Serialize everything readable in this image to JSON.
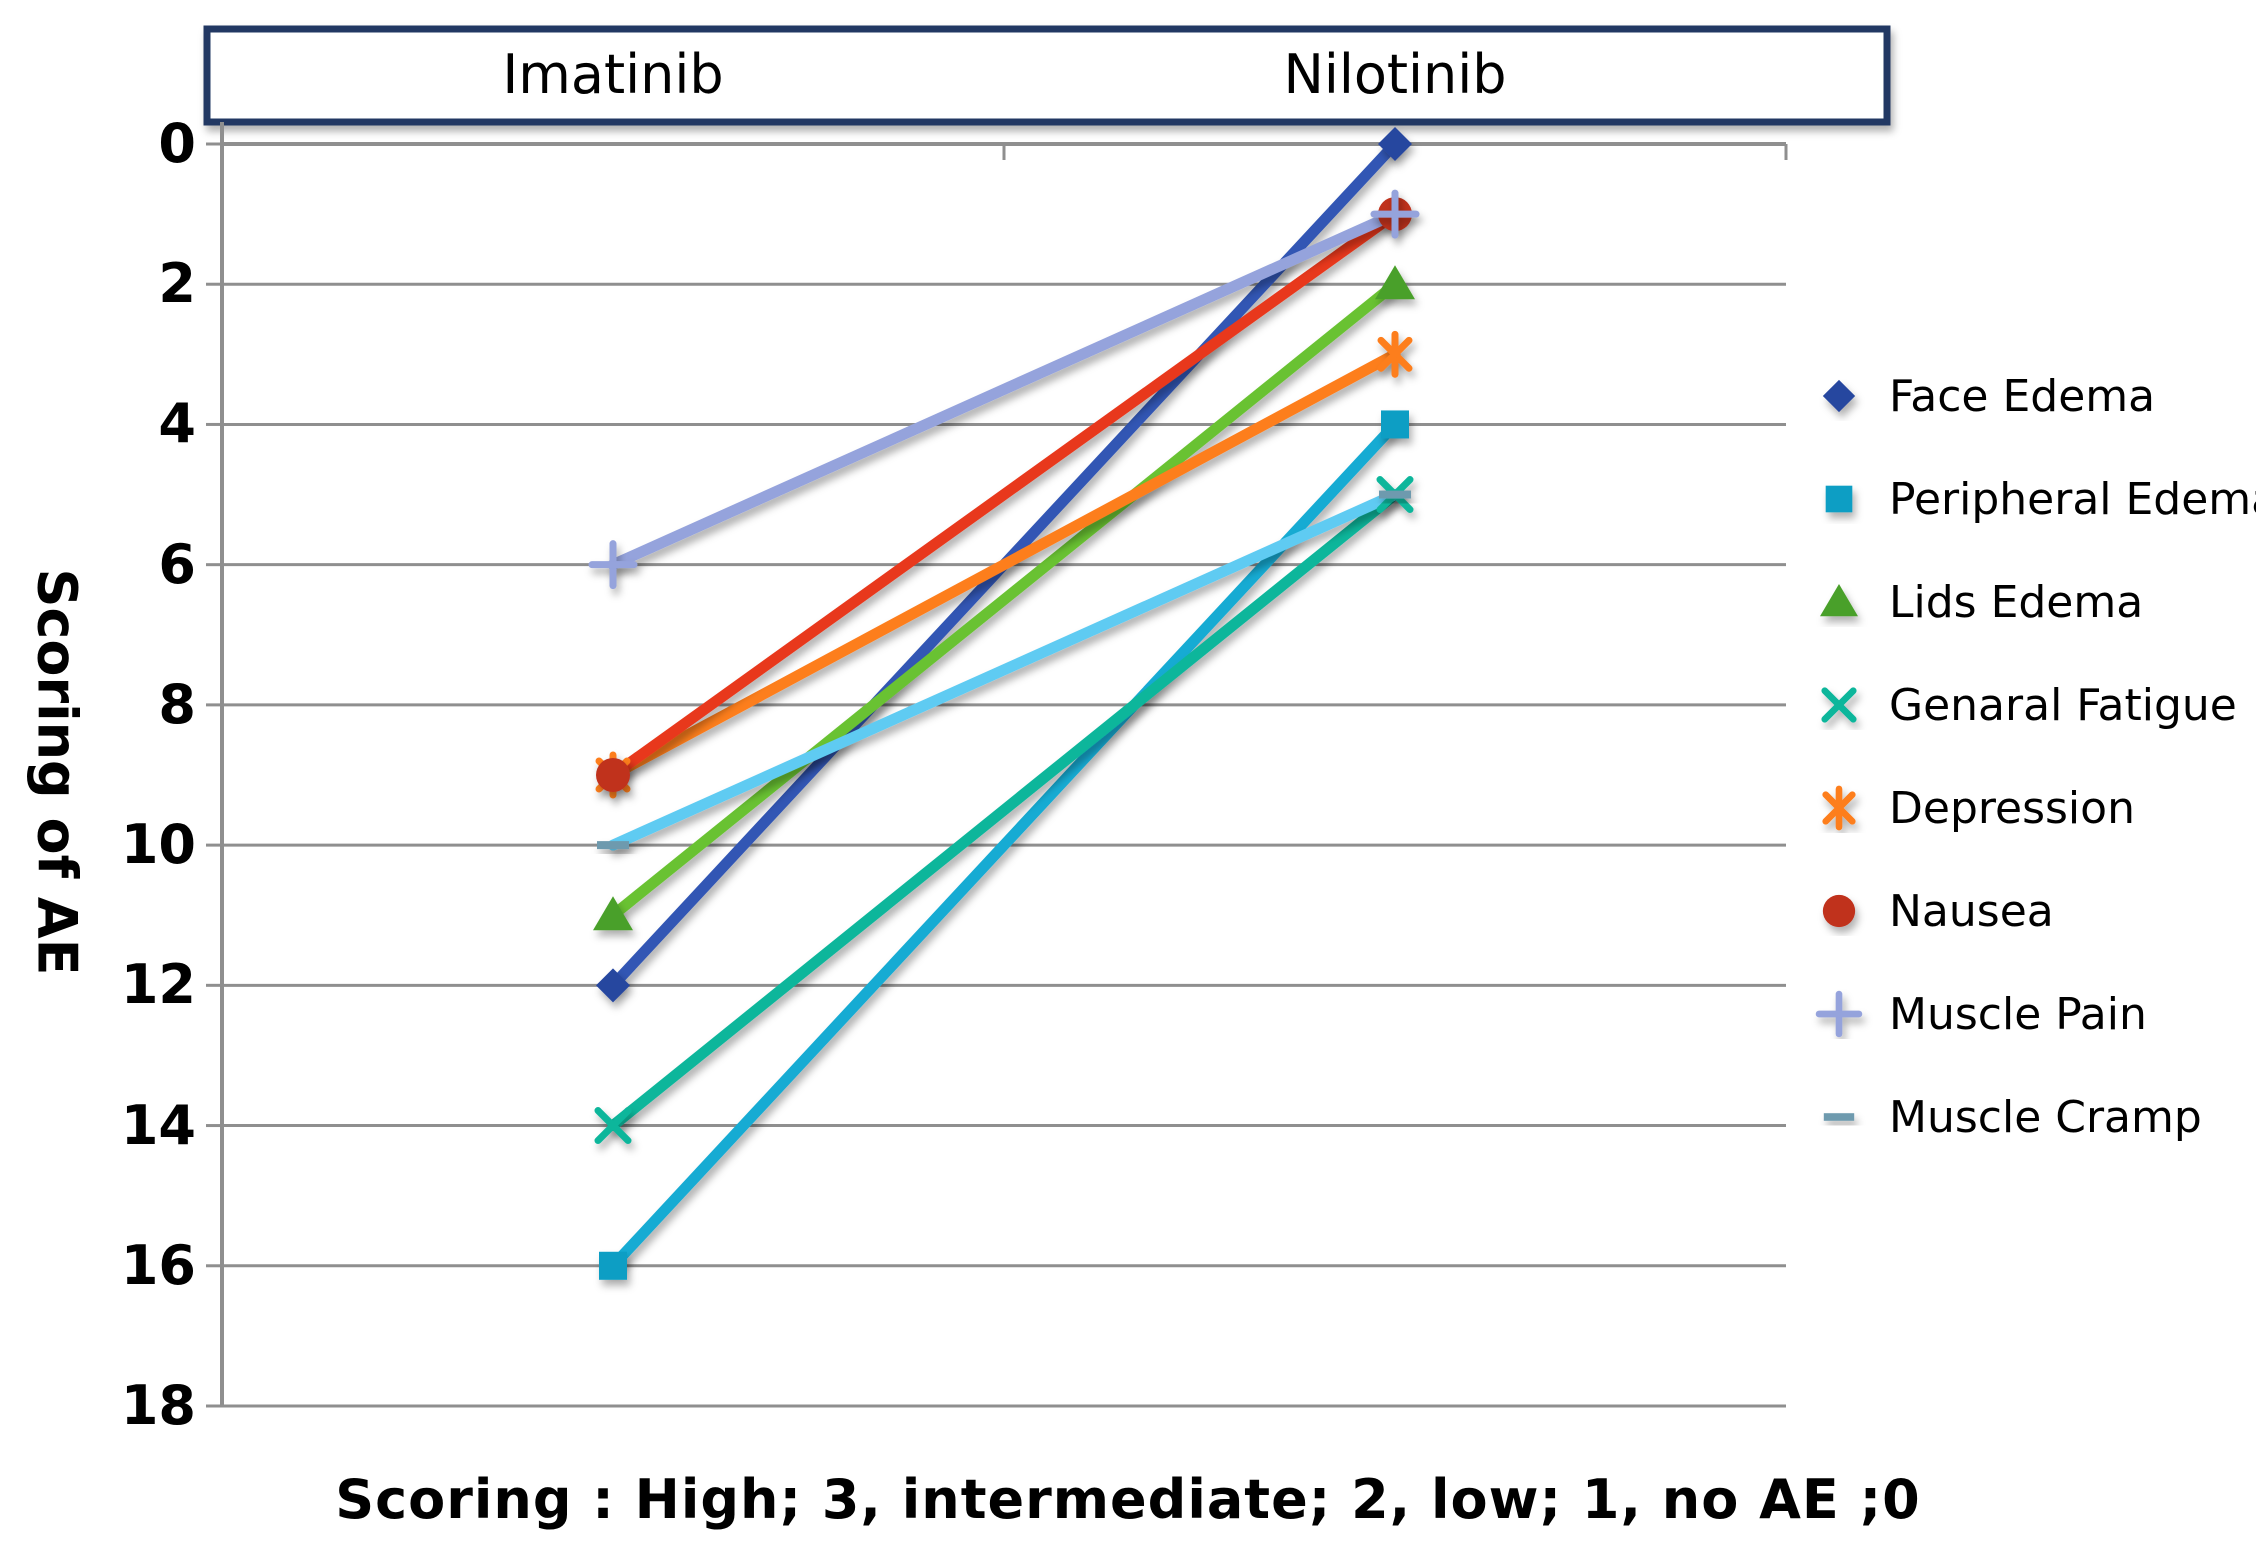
{
  "header": {
    "left": "Imatinib",
    "right": "Nilotinib"
  },
  "y_axis": {
    "title": "Scoring of AE",
    "ticks": [
      0,
      2,
      4,
      6,
      8,
      10,
      12,
      14,
      16,
      18
    ],
    "min": 0,
    "max": 18,
    "reversed": true
  },
  "caption": {
    "text": "Scoring：High; 3、 intermediate; 2、 low; 1、 no AE ;0"
  },
  "chart_data": {
    "type": "line",
    "subtype": "slope-chart",
    "title": "",
    "xlabel": "",
    "ylabel": "Scoring of AE",
    "categories": [
      "Imatinib",
      "Nilotinib"
    ],
    "series": [
      {
        "name": "Face Edema",
        "marker": "diamond",
        "color": "#3156b4",
        "marker_color": "#28479f",
        "values": [
          12,
          0
        ]
      },
      {
        "name": "Peripheral Edema",
        "marker": "square",
        "color": "#16abd3",
        "marker_color": "#0a9ec4",
        "values": [
          16,
          4
        ]
      },
      {
        "name": "Lids Edema",
        "marker": "triangle",
        "color": "#69c233",
        "marker_color": "#4aa02b",
        "values": [
          11,
          2
        ]
      },
      {
        "name": "Genaral Fatigue",
        "marker": "x",
        "color": "#0eb69b",
        "marker_color": "#0eb69b",
        "values": [
          14,
          5
        ]
      },
      {
        "name": "Depression",
        "marker": "asterisk",
        "color": "#fd7e1e",
        "marker_color": "#fd7e1e",
        "values": [
          9,
          3
        ]
      },
      {
        "name": "Nausea",
        "marker": "circle",
        "color": "#e8391d",
        "marker_color": "#c0311f",
        "values": [
          9,
          1
        ]
      },
      {
        "name": "Muscle Pain",
        "marker": "plus",
        "color": "#95a3dc",
        "marker_color": "#95a3dc",
        "values": [
          6,
          1
        ]
      },
      {
        "name": "Muscle Cramp",
        "marker": "dash",
        "color": "#5ecbf2",
        "marker_color": "#6e9aae",
        "values": [
          10,
          5
        ]
      }
    ],
    "ylim": [
      0,
      18
    ],
    "y_reversed": true,
    "grid": true,
    "x_axis_position": "top",
    "legend_position": "right"
  },
  "colors": {
    "background": "#ffffff",
    "grid": "#8f8f8f",
    "axis": "#8f8f8f",
    "box_border": "#203864",
    "text": "#000000"
  }
}
